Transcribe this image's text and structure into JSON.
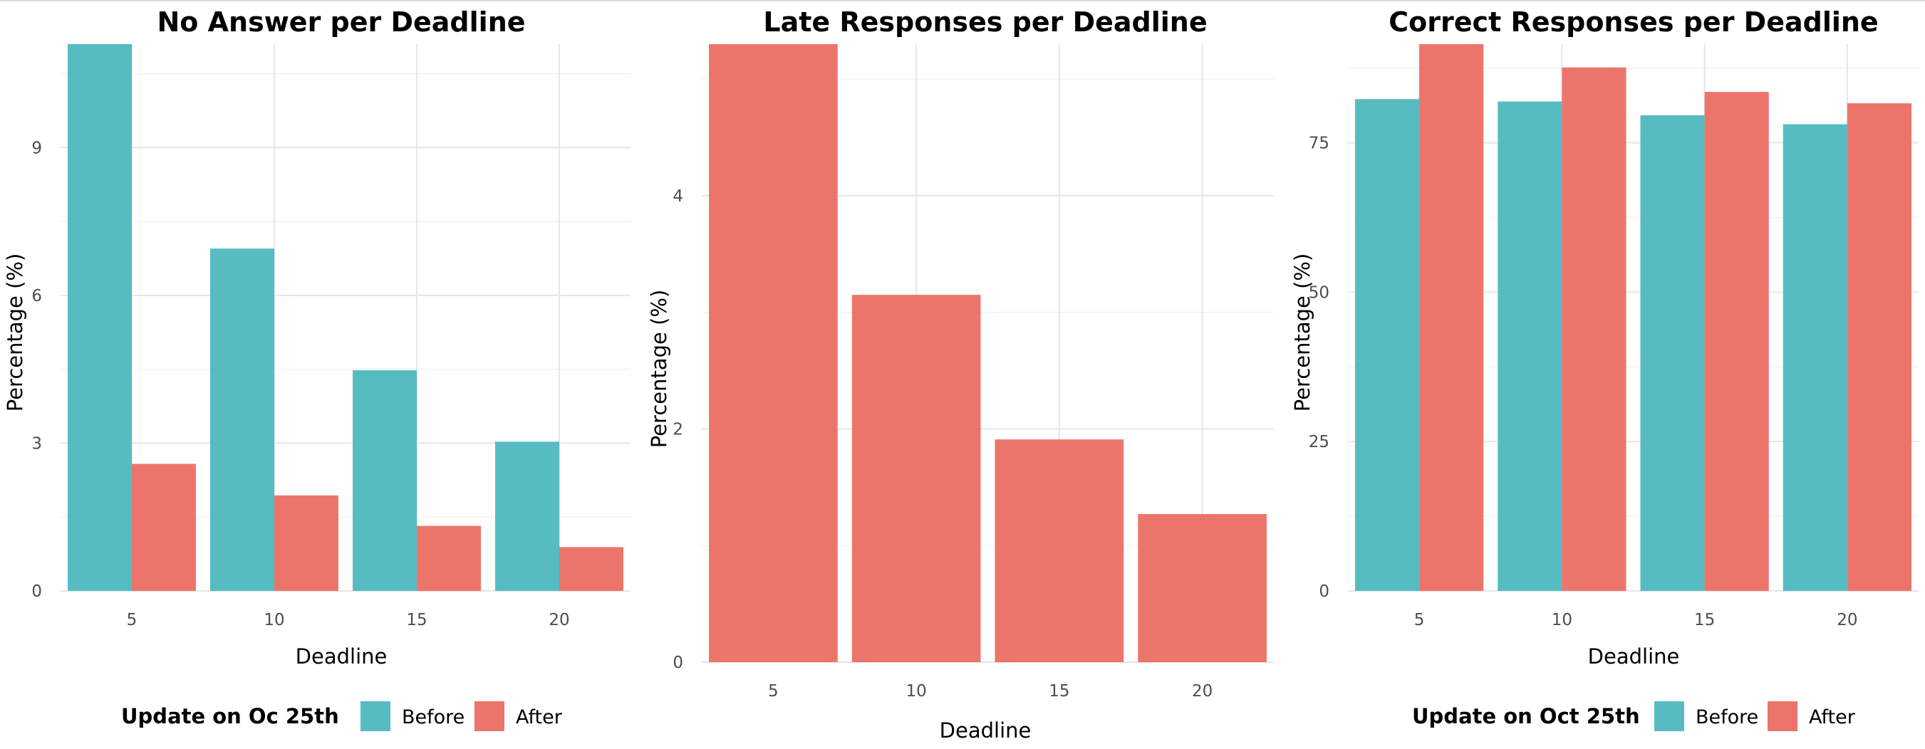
{
  "colors": {
    "before": "#56bcc2",
    "after": "#ec756b"
  },
  "chart_data": [
    {
      "type": "bar",
      "title": "No Answer per Deadline",
      "xlabel": "Deadline",
      "ylabel": "Percentage (%)",
      "categories": [
        "5",
        "10",
        "15",
        "20"
      ],
      "ylim": [
        0,
        11.1
      ],
      "yticks": [
        0,
        3,
        6,
        9
      ],
      "series": [
        {
          "name": "Before",
          "color": "#56bcc2",
          "values": [
            11.1,
            6.95,
            4.48,
            3.03
          ]
        },
        {
          "name": "After",
          "color": "#ec756b",
          "values": [
            2.58,
            1.94,
            1.32,
            0.89
          ]
        }
      ],
      "legend": {
        "title": "Update on Oc 25th",
        "position": "bottom"
      },
      "grid": true
    },
    {
      "type": "bar",
      "title": "Late Responses per Deadline",
      "xlabel": "Deadline",
      "ylabel": "Percentage (%)",
      "categories": [
        "5",
        "10",
        "15",
        "20"
      ],
      "ylim": [
        0,
        5.3
      ],
      "yticks": [
        0,
        2,
        4
      ],
      "series": [
        {
          "name": "After",
          "color": "#ec756b",
          "values": [
            5.3,
            3.15,
            1.91,
            1.27
          ]
        }
      ],
      "grid": true
    },
    {
      "type": "bar",
      "title": "Correct Responses per Deadline",
      "xlabel": "Deadline",
      "ylabel": "Percentage (%)",
      "categories": [
        "5",
        "10",
        "15",
        "20"
      ],
      "ylim": [
        0,
        91.5
      ],
      "yticks": [
        0,
        25,
        50,
        75
      ],
      "series": [
        {
          "name": "Before",
          "color": "#56bcc2",
          "values": [
            82.3,
            81.9,
            79.6,
            78.1
          ]
        },
        {
          "name": "After",
          "color": "#ec756b",
          "values": [
            91.5,
            87.6,
            83.5,
            81.6
          ]
        }
      ],
      "legend": {
        "title": "Update on Oct 25th",
        "position": "bottom"
      },
      "grid": true
    }
  ]
}
